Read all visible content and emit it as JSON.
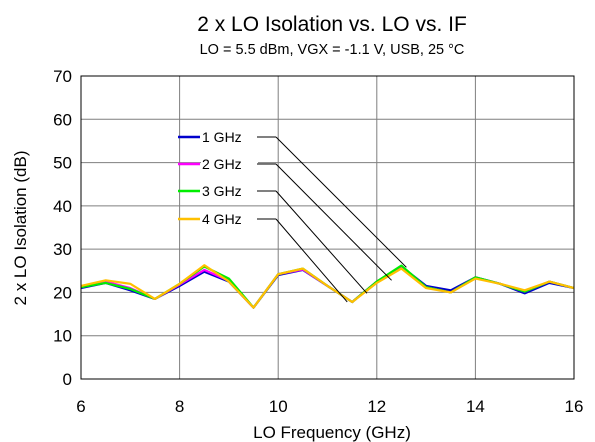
{
  "chart_data": {
    "type": "line",
    "title": "2 x LO Isolation vs. LO vs. IF",
    "subtitle": "LO = 5.5 dBm, VGX = -1.1 V, USB, 25 °C",
    "xlabel": "LO Frequency (GHz)",
    "ylabel": "2 x LO Isolation (dB)",
    "xlim": [
      6,
      16
    ],
    "ylim": [
      0,
      70
    ],
    "xticks": [
      6,
      8,
      10,
      12,
      14,
      16
    ],
    "yticks": [
      0,
      10,
      20,
      30,
      40,
      50,
      60,
      70
    ],
    "grid": true,
    "legend_position": "inside-left",
    "x": [
      6,
      6.5,
      7,
      7.5,
      8,
      8.5,
      9,
      9.5,
      10,
      10.5,
      11,
      11.5,
      12,
      12.5,
      13,
      13.5,
      14,
      14.5,
      15,
      15.5,
      16
    ],
    "series": [
      {
        "name": "1 GHz",
        "color": "#0000cc",
        "values": [
          21,
          22.2,
          20.5,
          18.5,
          21.5,
          24.8,
          22.5,
          16.5,
          24,
          25.2,
          21.5,
          17.8,
          22.5,
          26,
          21.5,
          20.5,
          23.5,
          22,
          19.8,
          22.2,
          21
        ]
      },
      {
        "name": "2 GHz",
        "color": "#ff00ff",
        "values": [
          21.2,
          22.5,
          21,
          18.5,
          21.8,
          25.2,
          22.7,
          16.5,
          24.2,
          25.3,
          21.5,
          17.8,
          22.5,
          25.8,
          21.2,
          20,
          23.5,
          22,
          20.2,
          22.5,
          21
        ]
      },
      {
        "name": "3 GHz",
        "color": "#00ee00",
        "values": [
          21.2,
          22.2,
          20.8,
          18.5,
          22,
          26,
          23.2,
          16.5,
          24.2,
          25.5,
          21.5,
          17.8,
          22.5,
          26.2,
          21.2,
          20,
          23.5,
          22,
          20.2,
          22.5,
          21
        ]
      },
      {
        "name": "4 GHz",
        "color": "#ffc000",
        "values": [
          21.5,
          22.8,
          22,
          18.5,
          22,
          26.3,
          22.5,
          16.5,
          24.2,
          25.5,
          21.5,
          17.8,
          22.2,
          25.5,
          21,
          20,
          23.2,
          22,
          20.5,
          22.5,
          21
        ]
      }
    ],
    "annotation_targets": [
      {
        "series": "1 GHz",
        "x": 12.6,
        "y": 25.8
      },
      {
        "series": "2 GHz",
        "x": 12.3,
        "y": 22.8
      },
      {
        "series": "3 GHz",
        "x": 11.8,
        "y": 19.8
      },
      {
        "series": "4 GHz",
        "x": 11.4,
        "y": 17.8
      }
    ]
  }
}
